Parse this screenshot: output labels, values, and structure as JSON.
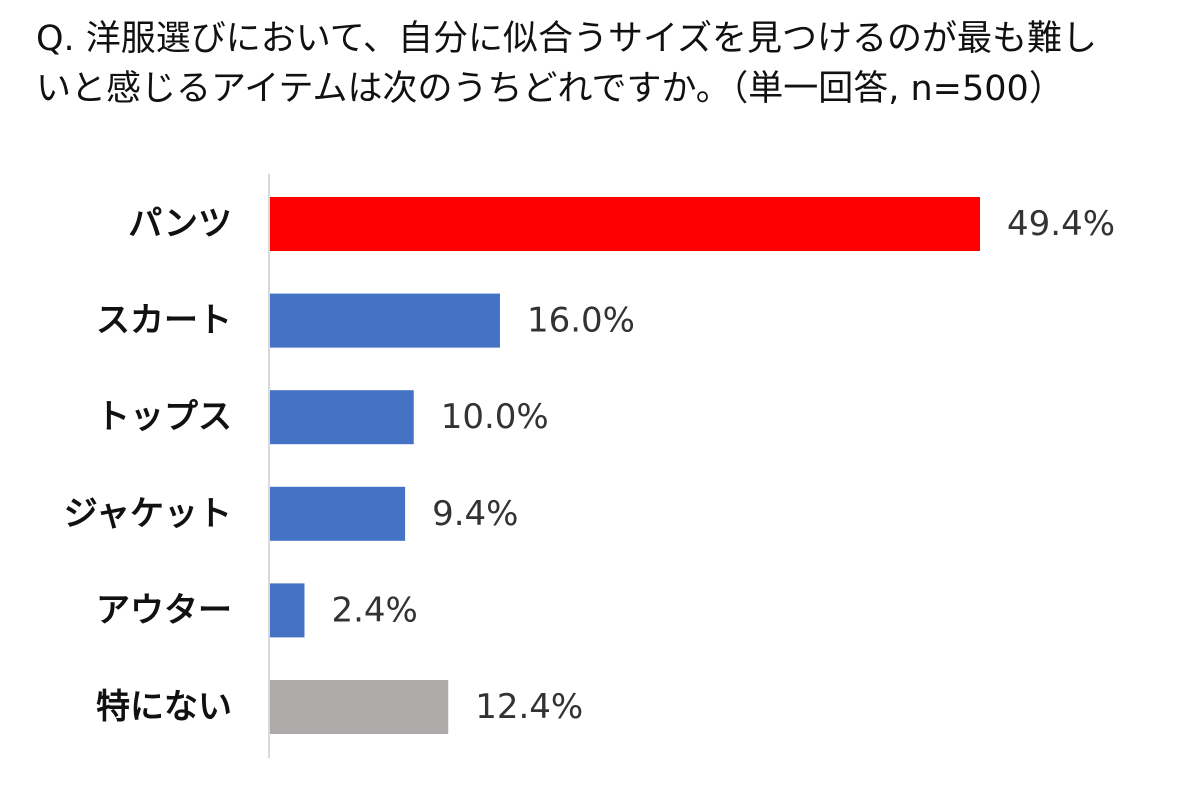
{
  "chart_data": {
    "type": "bar",
    "orientation": "horizontal",
    "title_lines": [
      "Q. 洋服選びにおいて、自分に似合うサイズを見つけるのが最も難し",
      "いと感じるアイテムは次のうちどれですか。（単一回答, n=500）"
    ],
    "categories": [
      "パンツ",
      "スカート",
      "トップス",
      "ジャケット",
      "アウター",
      "特にない"
    ],
    "values": [
      49.4,
      16.0,
      10.0,
      9.4,
      2.4,
      12.4
    ],
    "value_labels": [
      "49.4%",
      "16.0%",
      "10.0%",
      "9.4%",
      "2.4%",
      "12.4%"
    ],
    "bar_colors": [
      "#ff0000",
      "#4472c4",
      "#4472c4",
      "#4472c4",
      "#4472c4",
      "#aeaaaa"
    ],
    "xlim": [
      0,
      50
    ],
    "grid": false,
    "legend": "none"
  }
}
